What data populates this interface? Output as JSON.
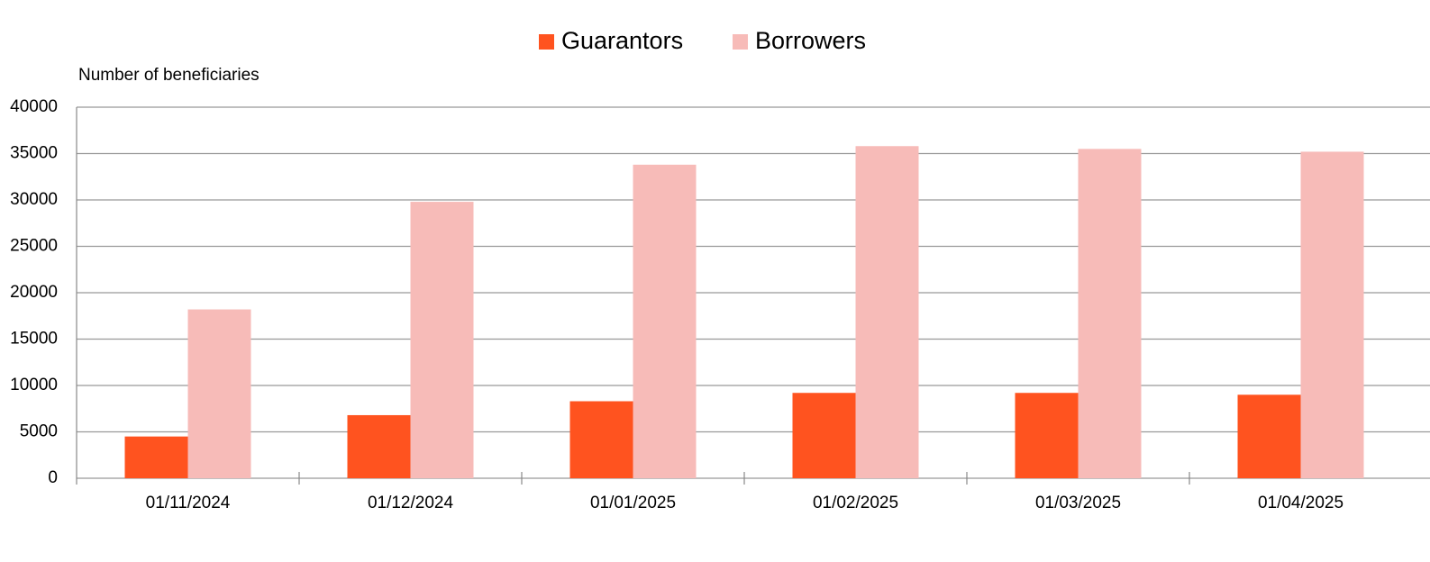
{
  "chart_data": {
    "type": "bar",
    "y_label": "Number of beneficiaries",
    "categories": [
      "01/11/2024",
      "01/12/2024",
      "01/01/2025",
      "01/02/2025",
      "01/03/2025",
      "01/04/2025"
    ],
    "series": [
      {
        "name": "Guarantors",
        "color": "#ff531f",
        "values": [
          4500,
          6800,
          8300,
          9200,
          9200,
          9000
        ]
      },
      {
        "name": "Borrowers",
        "color": "#f7bbb8",
        "values": [
          18200,
          29800,
          33800,
          35800,
          35500,
          35200
        ]
      }
    ],
    "ylim": [
      0,
      40000
    ],
    "yticks": [
      0,
      5000,
      10000,
      15000,
      20000,
      25000,
      30000,
      35000,
      40000
    ],
    "grid": true,
    "legend": "top"
  }
}
